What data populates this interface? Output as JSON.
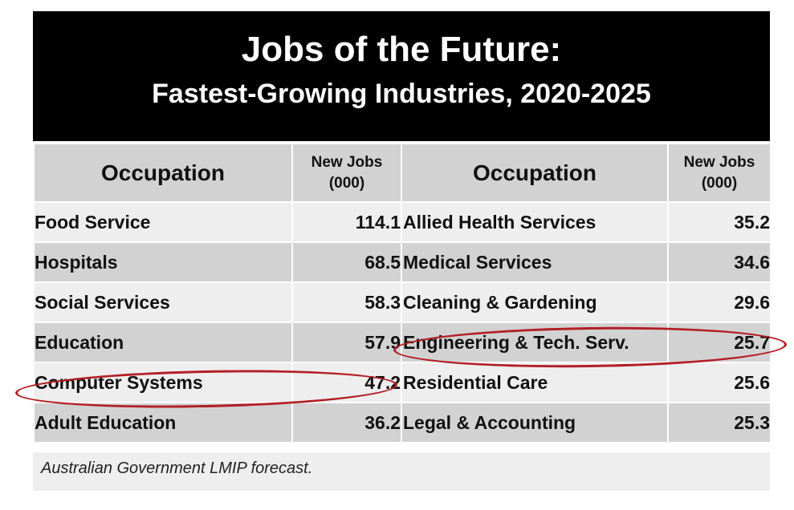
{
  "title": "Jobs of the Future:",
  "subtitle": "Fastest-Growing Industries, 2020-2025",
  "table": {
    "headers": {
      "occupation": "Occupation",
      "new_jobs_line1": "New Jobs",
      "new_jobs_line2": "(000)"
    },
    "left_rows": [
      {
        "occupation": "Food Service",
        "new_jobs": "114.1"
      },
      {
        "occupation": "Hospitals",
        "new_jobs": "68.5"
      },
      {
        "occupation": "Social Services",
        "new_jobs": "58.3"
      },
      {
        "occupation": "Education",
        "new_jobs": "57.9"
      },
      {
        "occupation": "Computer Systems",
        "new_jobs": "47.2",
        "highlighted": true
      },
      {
        "occupation": "Adult Education",
        "new_jobs": "36.2"
      }
    ],
    "right_rows": [
      {
        "occupation": "Allied Health Services",
        "new_jobs": "35.2"
      },
      {
        "occupation": "Medical Services",
        "new_jobs": "34.6"
      },
      {
        "occupation": "Cleaning & Gardening",
        "new_jobs": "29.6"
      },
      {
        "occupation": "Engineering & Tech. Serv.",
        "new_jobs": "25.7",
        "highlighted": true
      },
      {
        "occupation": "Residential Care",
        "new_jobs": "25.6"
      },
      {
        "occupation": "Legal & Accounting",
        "new_jobs": "25.3"
      }
    ]
  },
  "source": "Australian Government LMIP forecast.",
  "colors": {
    "banner_background": "#000000",
    "banner_text": "#ffffff",
    "row_light": "#eeeeee",
    "row_dark": "#d2d2d2",
    "highlight_circle": "#b21e25"
  }
}
